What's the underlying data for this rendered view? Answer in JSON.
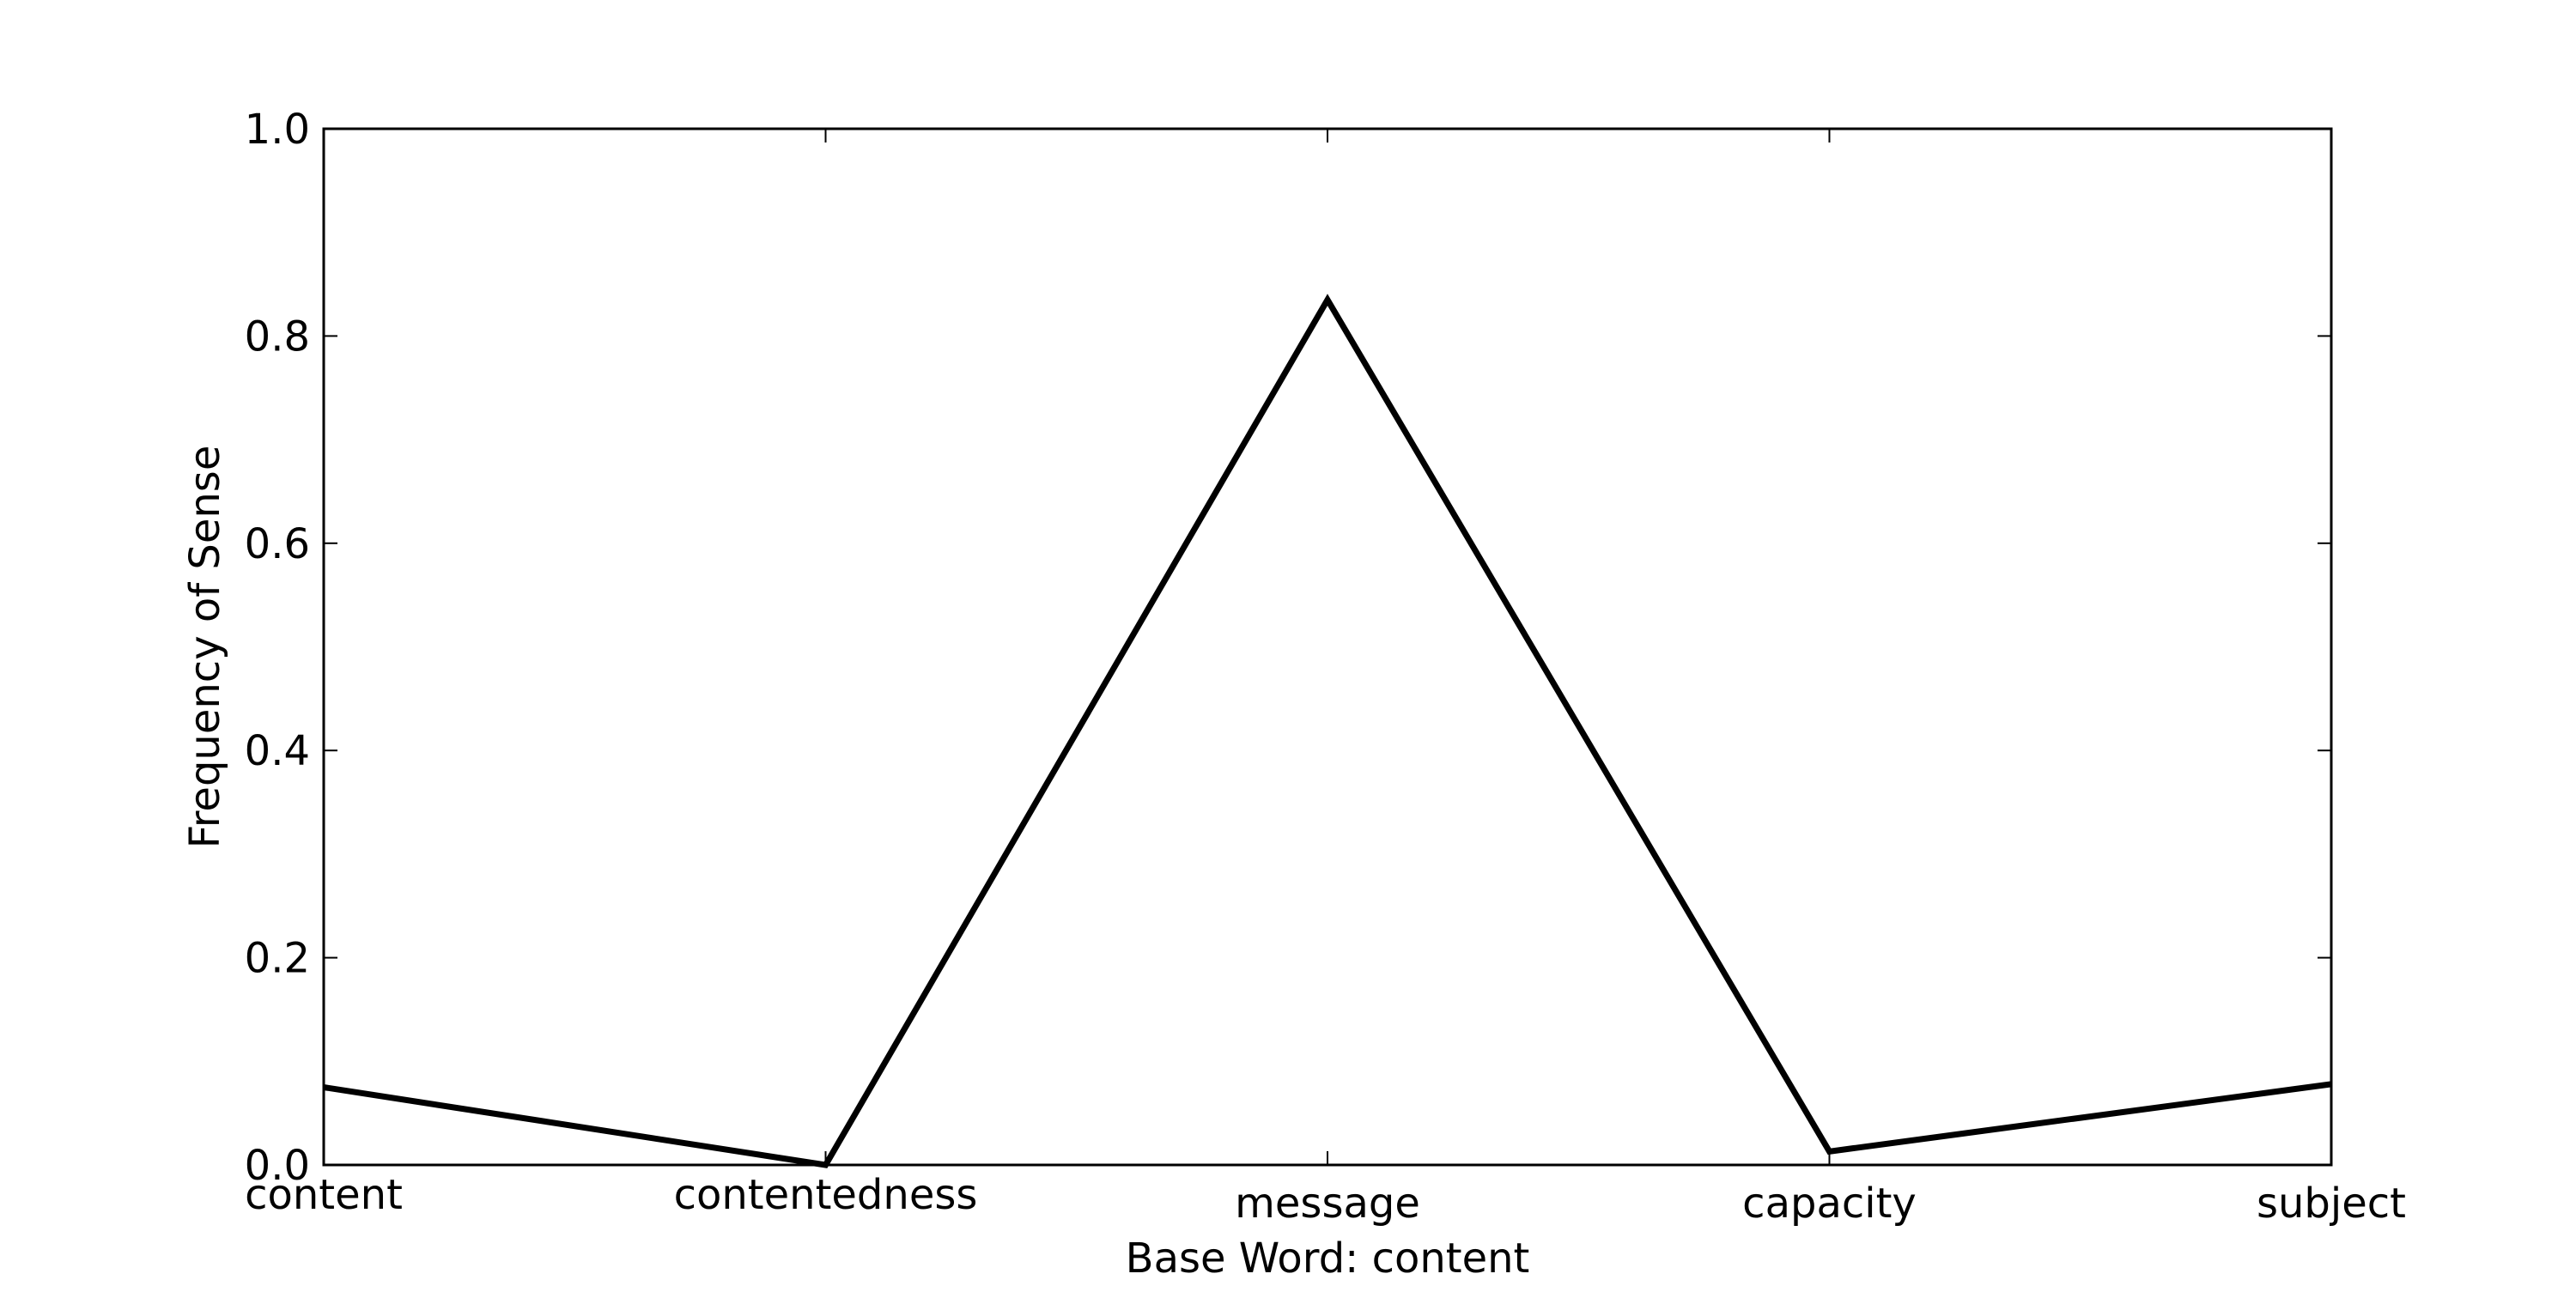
{
  "chart_data": {
    "type": "line",
    "title": "",
    "xlabel": "Base Word: content",
    "ylabel": "Frequency of Sense",
    "categories": [
      "content",
      "contentedness",
      "message",
      "capacity",
      "subject"
    ],
    "series": [
      {
        "values": [
          0.075,
          0.0,
          0.835,
          0.013,
          0.078
        ],
        "color": "#000000"
      }
    ],
    "ylim": [
      0.0,
      1.0
    ],
    "yticks": [
      "0.0",
      "0.2",
      "0.4",
      "0.6",
      "0.8",
      "1.0"
    ],
    "grid": false,
    "legend": "none"
  }
}
